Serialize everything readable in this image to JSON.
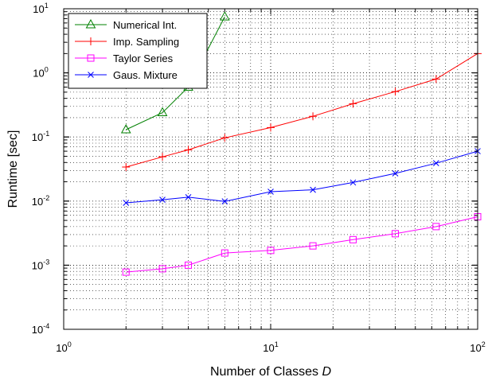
{
  "chart_data": {
    "type": "line",
    "xlabel": "Number of Classes",
    "xlabel_var": "D",
    "ylabel": "Runtime [sec]",
    "x_scale": "log",
    "y_scale": "log",
    "xlim": [
      1,
      100
    ],
    "ylim": [
      0.0001,
      10
    ],
    "x_ticks": [
      {
        "value": 1,
        "base": "10",
        "exp": "0"
      },
      {
        "value": 10,
        "base": "10",
        "exp": "1"
      },
      {
        "value": 100,
        "base": "10",
        "exp": "2"
      }
    ],
    "y_ticks": [
      {
        "value": 0.0001,
        "base": "10",
        "exp": "-4"
      },
      {
        "value": 0.001,
        "base": "10",
        "exp": "-3"
      },
      {
        "value": 0.01,
        "base": "10",
        "exp": "-2"
      },
      {
        "value": 0.1,
        "base": "10",
        "exp": "-1"
      },
      {
        "value": 1,
        "base": "10",
        "exp": "0"
      },
      {
        "value": 10,
        "base": "10",
        "exp": "1"
      }
    ],
    "grid": true,
    "legend_position": "top-left",
    "series": [
      {
        "name": "Numerical Int.",
        "color": "#008000",
        "marker": "triangle",
        "x": [
          2,
          3,
          4,
          6
        ],
        "y": [
          0.13,
          0.24,
          0.6,
          7.5
        ]
      },
      {
        "name": "Imp. Sampling",
        "color": "#ff0000",
        "marker": "plus",
        "x": [
          2,
          3,
          4,
          6,
          10,
          16,
          25,
          40,
          63,
          100
        ],
        "y": [
          0.034,
          0.049,
          0.063,
          0.097,
          0.14,
          0.21,
          0.33,
          0.51,
          0.8,
          2.0
        ]
      },
      {
        "name": "Taylor Series",
        "color": "#ff00ff",
        "marker": "square",
        "x": [
          2,
          3,
          4,
          6,
          10,
          16,
          25,
          40,
          63,
          100
        ],
        "y": [
          0.00078,
          0.00088,
          0.001,
          0.00155,
          0.0017,
          0.002,
          0.0025,
          0.0031,
          0.004,
          0.0057
        ]
      },
      {
        "name": "Gaus. Mixture",
        "color": "#0000ff",
        "marker": "x",
        "x": [
          2,
          3,
          4,
          6,
          10,
          16,
          25,
          40,
          63,
          100
        ],
        "y": [
          0.0094,
          0.0105,
          0.0115,
          0.0099,
          0.014,
          0.015,
          0.0195,
          0.027,
          0.039,
          0.06
        ]
      }
    ]
  }
}
